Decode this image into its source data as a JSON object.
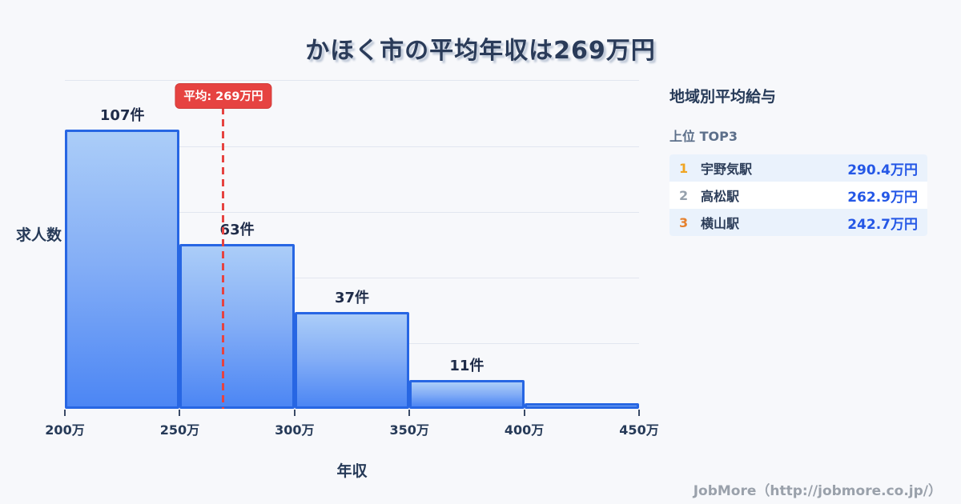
{
  "title": "かほく市の平均年収は269万円",
  "chart_data": {
    "type": "bar",
    "title": "かほく市の平均年収は269万円",
    "xlabel": "年収",
    "ylabel": "求人数",
    "x_range": [
      200,
      450
    ],
    "x_ticks": [
      "200万",
      "250万",
      "300万",
      "350万",
      "400万",
      "450万"
    ],
    "bins": [
      "200万-250万",
      "250万-300万",
      "300万-350万",
      "350万-400万",
      "400万-450万"
    ],
    "values": [
      107,
      63,
      37,
      11,
      2
    ],
    "bar_labels": [
      "107件",
      "63件",
      "37件",
      "11件",
      ""
    ],
    "ylim": [
      0,
      126
    ],
    "grid": true,
    "legend": false,
    "mean": {
      "value": 269,
      "label": "平均: 269万円"
    }
  },
  "side_panel": {
    "heading": "地域別平均給与",
    "subheading": "上位 TOP3",
    "rows": [
      {
        "rank": "1",
        "name": "宇野気駅",
        "value": "290.4万円"
      },
      {
        "rank": "2",
        "name": "高松駅",
        "value": "262.9万円"
      },
      {
        "rank": "3",
        "name": "横山駅",
        "value": "242.7万円"
      }
    ]
  },
  "footer": {
    "credit": "JobMore（http://jobmore.co.jp/）"
  },
  "colors": {
    "background": "#f7f8fb",
    "navy_text": "#263a58",
    "bar_border": "#2766e3",
    "bar_gradient_top": "#abcdf8",
    "bar_gradient_bottom": "#4c86f4",
    "mean_red": "#e64341",
    "gridline": "#e2e6f0",
    "value_blue": "#2457e6",
    "rank1_gold": "#f0a522",
    "rank2_gray": "#95a0ac",
    "rank3_orange": "#e5812e",
    "row_highlight": "#eaf2fc",
    "footer_gray": "#9aa1ab"
  }
}
